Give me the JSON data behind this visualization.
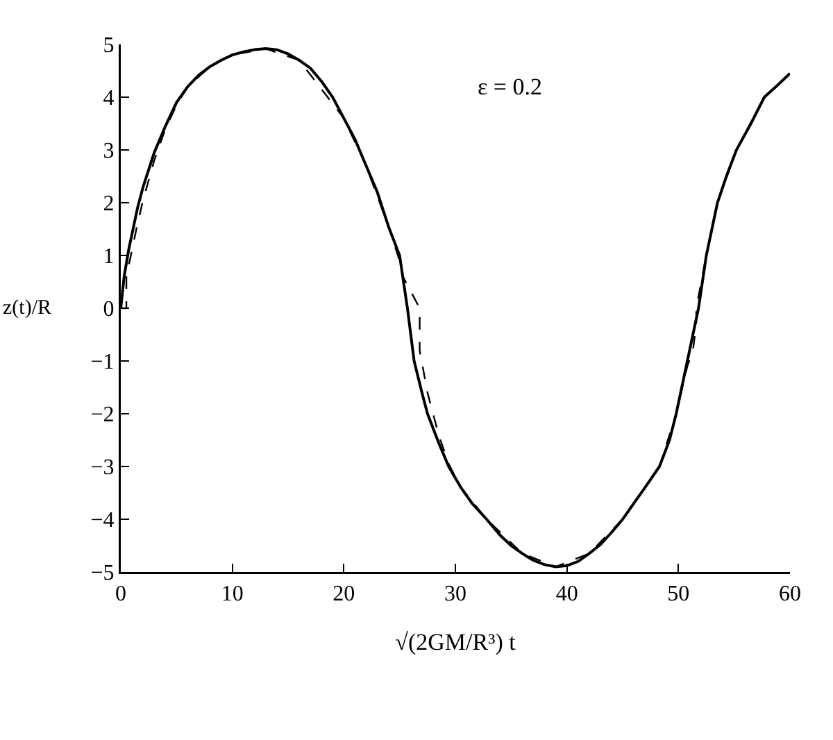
{
  "chart_data": {
    "type": "line",
    "xlabel": "√(2GM/R³) t",
    "ylabel": "z(t)/R",
    "annotations": [
      "ε = 0.2"
    ],
    "xlim": [
      0,
      60
    ],
    "ylim": [
      -5,
      5
    ],
    "xticks": [
      0,
      10,
      20,
      30,
      40,
      50,
      60
    ],
    "yticks": [
      -5,
      -4,
      -3,
      -2,
      -1,
      0,
      1,
      2,
      3,
      4,
      5
    ],
    "grid": false,
    "series": [
      {
        "color": "#000000",
        "line_style": "solid",
        "x": [
          0,
          0.3,
          0.7,
          1,
          1.5,
          2,
          3,
          4,
          5,
          6,
          7,
          8,
          9,
          10,
          11,
          12,
          13,
          14,
          15,
          16,
          17,
          18,
          19,
          20,
          21,
          22,
          23,
          24,
          25,
          25.7,
          26.3,
          27,
          27.5,
          28.5,
          29.4,
          30.5,
          31.5,
          32.8,
          34,
          35,
          36,
          37,
          38,
          39,
          40,
          41,
          42,
          43,
          44,
          45,
          46,
          47,
          48.3,
          49.2,
          49.8,
          50.8,
          51.8,
          52.5,
          53.5,
          54.3,
          55.2,
          56.5,
          57.7,
          59,
          60
        ],
        "values": [
          0,
          0.6,
          1.1,
          1.4,
          1.9,
          2.3,
          2.95,
          3.45,
          3.9,
          4.2,
          4.42,
          4.58,
          4.7,
          4.8,
          4.86,
          4.9,
          4.92,
          4.9,
          4.82,
          4.7,
          4.55,
          4.3,
          4.0,
          3.6,
          3.2,
          2.7,
          2.2,
          1.55,
          1,
          0,
          -1,
          -1.6,
          -2,
          -2.55,
          -3,
          -3.4,
          -3.7,
          -4,
          -4.3,
          -4.5,
          -4.65,
          -4.78,
          -4.86,
          -4.9,
          -4.88,
          -4.8,
          -4.65,
          -4.48,
          -4.25,
          -4.0,
          -3.7,
          -3.4,
          -3,
          -2.5,
          -2,
          -1,
          0,
          1,
          2,
          2.5,
          3,
          3.5,
          4,
          4.25,
          4.45
        ]
      },
      {
        "color": "#000000",
        "line_style": "dashed",
        "x": [
          0,
          0.5,
          0.5,
          1,
          1.5,
          2,
          3,
          4,
          5,
          6,
          8,
          10,
          13,
          16,
          20,
          22,
          24,
          25,
          25.3,
          26.8,
          26.8,
          27.5,
          28.5,
          29.4,
          30.5,
          32.8,
          36,
          39,
          42,
          45,
          48.3,
          49.8,
          50.8,
          51.3,
          51.6,
          51.6,
          52.5,
          53.5,
          55.2,
          57.7,
          60
        ],
        "values": [
          0,
          0,
          0.6,
          1.1,
          1.6,
          2.05,
          2.8,
          3.4,
          3.85,
          4.2,
          4.58,
          4.8,
          4.92,
          4.7,
          3.6,
          2.7,
          1.55,
          0.9,
          0.6,
          0,
          -0.8,
          -1.6,
          -2.4,
          -2.95,
          -3.4,
          -4,
          -4.65,
          -4.9,
          -4.65,
          -4.0,
          -3,
          -2,
          -1.1,
          -0.8,
          -0.3,
          0,
          1,
          2,
          3,
          4,
          4.45
        ]
      }
    ]
  }
}
